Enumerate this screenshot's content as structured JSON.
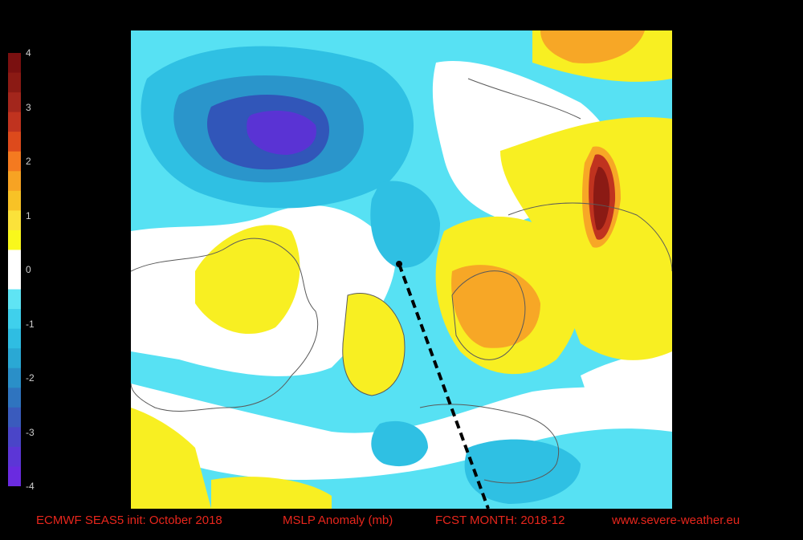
{
  "title": {
    "model": "ECMWF SEAS5  init: October 2018",
    "variable": "MSLP Anomaly (mb)",
    "forecast": "FCST MONTH: 2018-12",
    "source": "www.severe-weather.eu"
  },
  "colorbar": {
    "labels": [
      "4",
      "3",
      "2",
      "1",
      "0",
      "-1",
      "-2",
      "-3",
      "-4"
    ],
    "colors": [
      "#7a1010",
      "#8b1a14",
      "#a3261c",
      "#c0331f",
      "#dd4a1c",
      "#f47a20",
      "#f7a323",
      "#f8c226",
      "#fbe23a",
      "#f9f81c",
      "#ffffff",
      "#ffffff",
      "#5fe4f4",
      "#3fd0ec",
      "#2fbde2",
      "#2aa8d4",
      "#2a8fc8",
      "#2f74bf",
      "#3a5bbd",
      "#4a45c8",
      "#5c36d6",
      "#6a2be0"
    ]
  },
  "colors": {
    "background": "#000000",
    "footer_text": "#e8261c",
    "neg_light": "#57e1f3",
    "neg_mid": "#2fc0e3",
    "neg_dark": "#2a95cb",
    "neg_deep": "#3156b9",
    "neg_core": "#5a33d4",
    "pos_light": "#f8ef22",
    "pos_mid": "#f7a726",
    "pos_high": "#c0331f",
    "pos_max": "#8b1a14"
  }
}
